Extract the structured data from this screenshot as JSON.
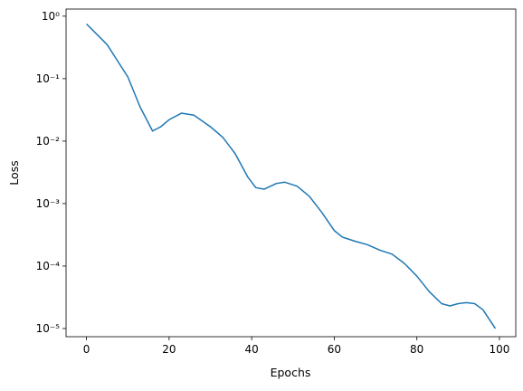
{
  "chart_data": {
    "type": "line",
    "xlabel": "Epochs",
    "ylabel": "Loss",
    "log_y": true,
    "x": [
      0,
      5,
      10,
      13,
      16,
      18,
      20,
      23,
      26,
      30,
      33,
      36,
      39,
      41,
      43,
      46,
      48,
      51,
      54,
      57,
      60,
      62,
      65,
      68,
      71,
      74,
      77,
      80,
      83,
      86,
      88,
      90,
      92,
      94,
      96,
      99
    ],
    "series": [
      {
        "color": "#1f77b4",
        "values": [
          0.75,
          0.35,
          0.107,
          0.035,
          0.0145,
          0.017,
          0.022,
          0.028,
          0.026,
          0.017,
          0.0115,
          0.0063,
          0.0027,
          0.0018,
          0.0017,
          0.0021,
          0.0022,
          0.0019,
          0.0013,
          0.00072,
          0.00037,
          0.00029,
          0.00025,
          0.00022,
          0.00018,
          0.000155,
          0.00011,
          6.9e-05,
          3.9e-05,
          2.5e-05,
          2.3e-05,
          2.5e-05,
          2.6e-05,
          2.5e-05,
          2e-05,
          1e-05
        ]
      }
    ],
    "xlim": [
      -4.95,
      103.95
    ],
    "xticks": [
      0,
      20,
      40,
      60,
      80,
      100
    ],
    "ylim": [
      7.4e-06,
      1.3
    ],
    "yticks": [
      {
        "value": 1,
        "label": "10⁰"
      },
      {
        "value": 0.1,
        "label": "10⁻¹"
      },
      {
        "value": 0.01,
        "label": "10⁻²"
      },
      {
        "value": 0.001,
        "label": "10⁻³"
      },
      {
        "value": 0.0001,
        "label": "10⁻⁴"
      },
      {
        "value": 1e-05,
        "label": "10⁻⁵"
      }
    ]
  }
}
